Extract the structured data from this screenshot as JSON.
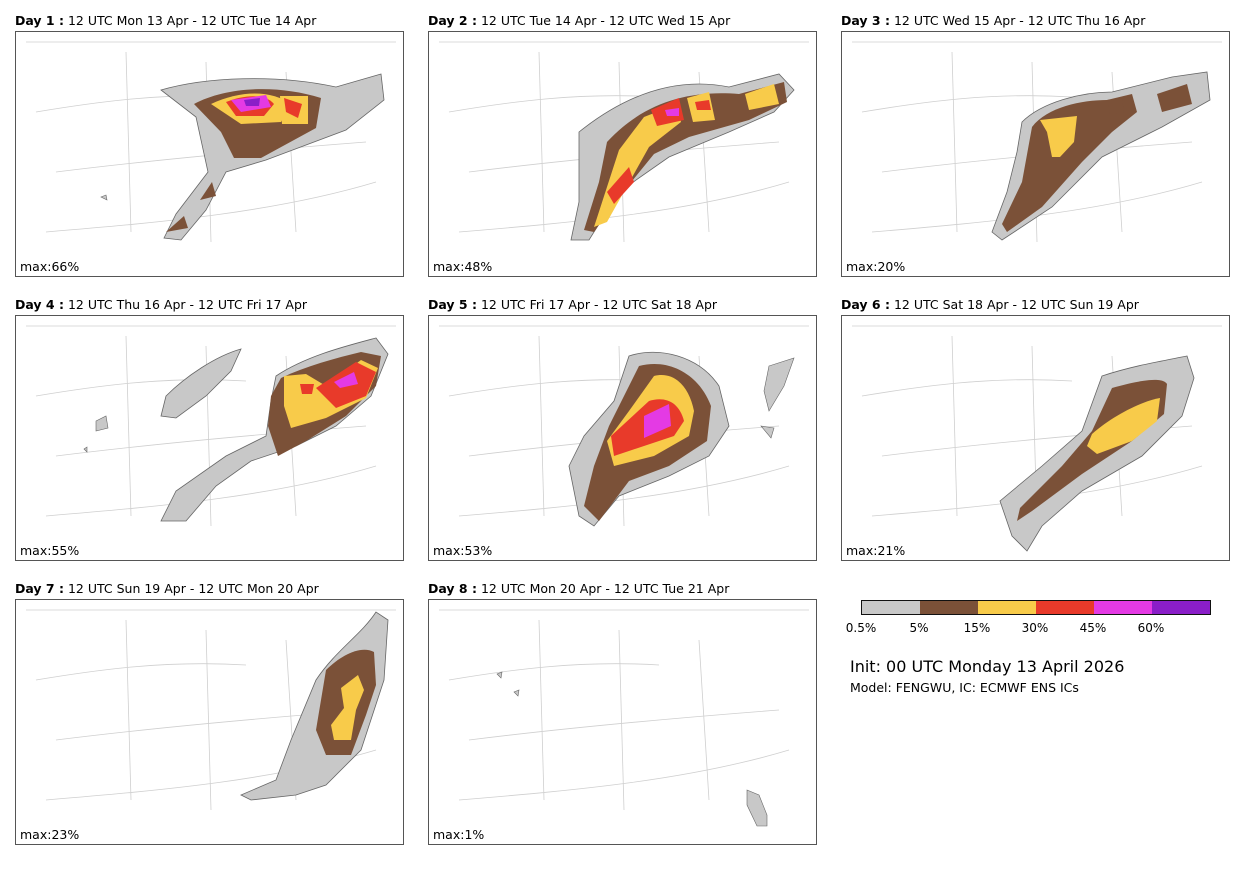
{
  "panels": [
    {
      "day": "Day 1 :",
      "period": "12 UTC Mon 13 Apr - 12 UTC Tue 14 Apr",
      "max": "max:66%"
    },
    {
      "day": "Day 2 :",
      "period": "12 UTC Tue 14 Apr - 12 UTC Wed 15 Apr",
      "max": "max:48%"
    },
    {
      "day": "Day 3 :",
      "period": "12 UTC Wed 15 Apr - 12 UTC Thu 16 Apr",
      "max": "max:20%"
    },
    {
      "day": "Day 4 :",
      "period": "12 UTC Thu 16 Apr - 12 UTC Fri 17 Apr",
      "max": "max:55%"
    },
    {
      "day": "Day 5 :",
      "period": "12 UTC Fri 17 Apr - 12 UTC Sat 18 Apr",
      "max": "max:53%"
    },
    {
      "day": "Day 6 :",
      "period": "12 UTC Sat 18 Apr - 12 UTC Sun 19 Apr",
      "max": "max:21%"
    },
    {
      "day": "Day 7 :",
      "period": "12 UTC Sun 19 Apr - 12 UTC Mon 20 Apr",
      "max": "max:23%"
    },
    {
      "day": "Day 8 :",
      "period": "12 UTC Mon 20 Apr - 12 UTC Tue 21 Apr",
      "max": "max:1%"
    }
  ],
  "legend": {
    "ticks": [
      "0.5%",
      "5%",
      "15%",
      "30%",
      "45%",
      "60%"
    ],
    "colors": [
      "#c8c8c8",
      "#7b5138",
      "#f8cb4a",
      "#e83a2a",
      "#e43ae4",
      "#8a1ec8"
    ]
  },
  "init": "Init: 00 UTC Monday 13 April 2026",
  "model": "Model: FENGWU, IC: ECMWF ENS ICs"
}
